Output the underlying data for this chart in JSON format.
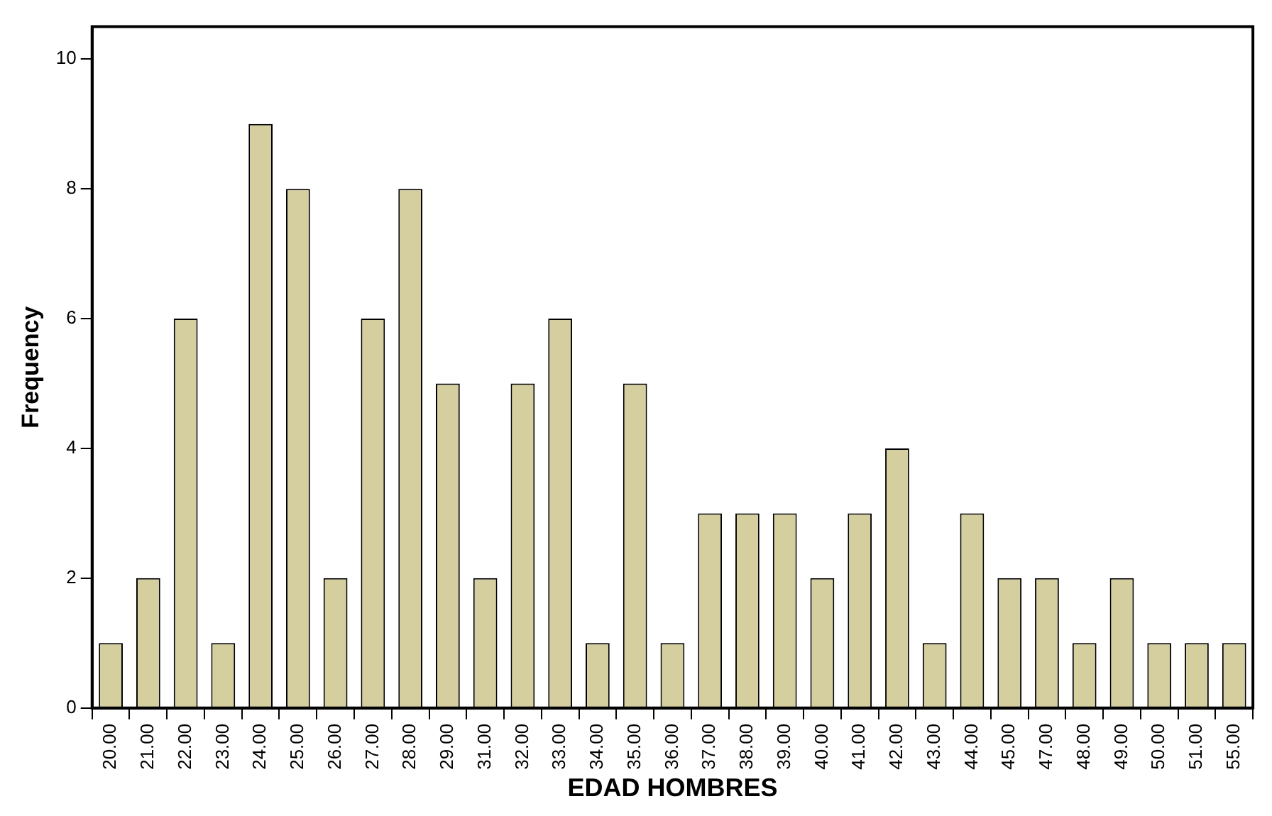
{
  "chart_data": {
    "type": "bar",
    "xlabel": "EDAD HOMBRES",
    "ylabel": "Frequency",
    "categories": [
      "20.00",
      "21.00",
      "22.00",
      "23.00",
      "24.00",
      "25.00",
      "26.00",
      "27.00",
      "28.00",
      "29.00",
      "31.00",
      "32.00",
      "33.00",
      "34.00",
      "35.00",
      "36.00",
      "37.00",
      "38.00",
      "39.00",
      "40.00",
      "41.00",
      "42.00",
      "43.00",
      "44.00",
      "45.00",
      "47.00",
      "48.00",
      "49.00",
      "50.00",
      "51.00",
      "55.00"
    ],
    "values": [
      1,
      2,
      6,
      1,
      9,
      8,
      2,
      6,
      8,
      5,
      2,
      5,
      6,
      1,
      5,
      1,
      3,
      3,
      3,
      2,
      3,
      4,
      1,
      3,
      2,
      2,
      1,
      2,
      1,
      1,
      1
    ],
    "color": "#d5cfa0",
    "ylim": [
      0,
      10.5
    ],
    "yticks": [
      0,
      2,
      4,
      6,
      8,
      10
    ],
    "grid": false,
    "legend": false
  }
}
